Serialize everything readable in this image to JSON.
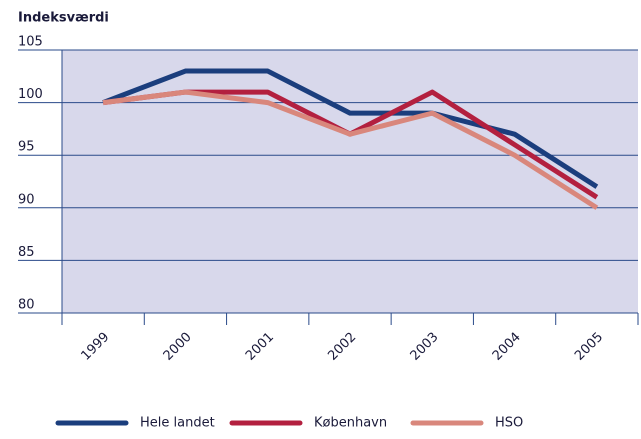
{
  "chart_data": {
    "type": "line",
    "y_label": "Indeksværdi",
    "categories": [
      "1999",
      "2000",
      "2001",
      "2002",
      "2003",
      "2004",
      "2005"
    ],
    "series": [
      {
        "name": "Hele landet",
        "color": "#1b3e7d",
        "values": [
          100,
          103,
          103,
          99,
          99,
          97,
          92
        ]
      },
      {
        "name": "København",
        "color": "#b3203f",
        "values": [
          100,
          101,
          101,
          97,
          101,
          96,
          91
        ]
      },
      {
        "name": "HSO",
        "color": "#d9877c",
        "values": [
          100,
          101,
          100,
          97,
          99,
          95,
          90
        ]
      }
    ],
    "ylim": [
      80,
      105
    ],
    "yticks": [
      80,
      85,
      90,
      95,
      100,
      105
    ],
    "grid": true
  }
}
